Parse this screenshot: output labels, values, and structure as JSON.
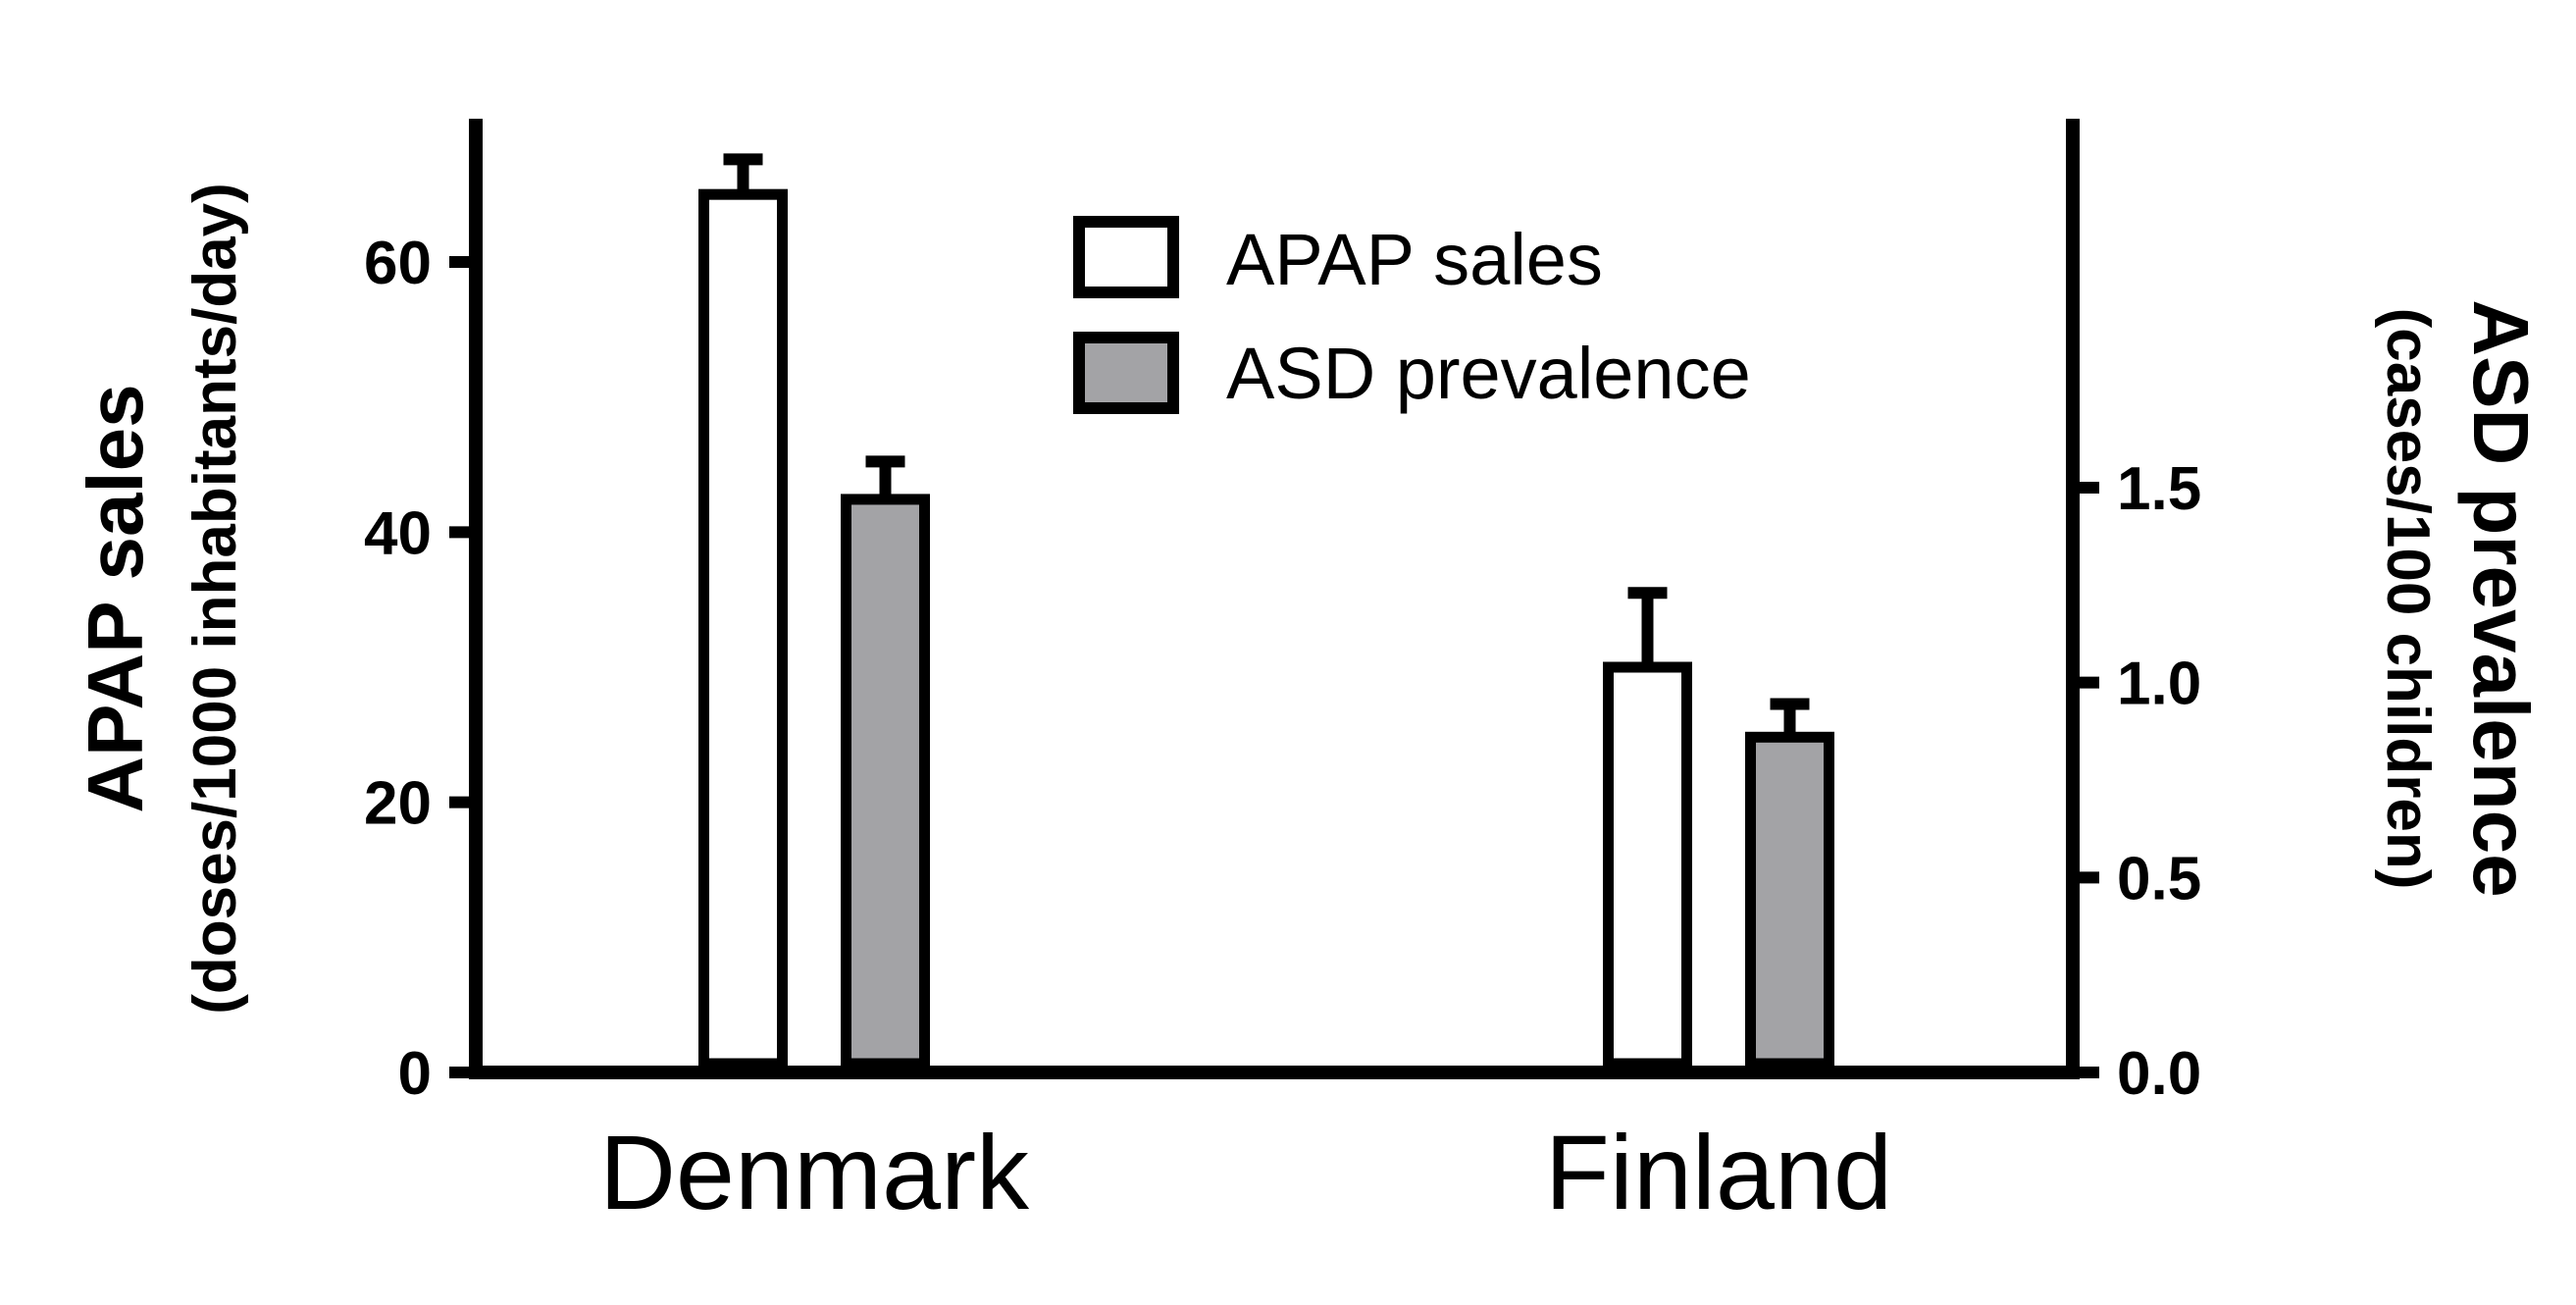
{
  "chart_data": {
    "type": "bar",
    "categories": [
      "Denmark",
      "Finland"
    ],
    "series": [
      {
        "name": "APAP sales",
        "axis": "left",
        "values": [
          65,
          30
        ],
        "errors": [
          2.6,
          5.5
        ],
        "color": "#ffffff"
      },
      {
        "name": "ASD prevalence",
        "axis": "right",
        "values": [
          1.47,
          0.86
        ],
        "errors": [
          0.097,
          0.085
        ],
        "color": "#a3a3a6"
      }
    ],
    "y_left": {
      "label_line1": "APAP sales",
      "label_line2": "(doses/1000 inhabitants/day)",
      "lim": [
        0,
        70
      ],
      "ticks": [
        0,
        20,
        40,
        60
      ],
      "tick_labels": [
        "0",
        "20",
        "40",
        "60"
      ]
    },
    "y_right": {
      "label_line1": "ASD prevalence",
      "label_line2": "(cases/100 children)",
      "lim": [
        0,
        1.6
      ],
      "ticks": [
        0,
        0.5,
        1.0,
        1.5
      ],
      "tick_labels": [
        "0.0",
        "0.5",
        "1.0",
        "1.5"
      ]
    },
    "legend": {
      "position": "top-center"
    },
    "grid": false,
    "colors": {
      "axis": "#000000",
      "bar_stroke": "#000000",
      "gray_fill": "#a3a3a6"
    }
  }
}
